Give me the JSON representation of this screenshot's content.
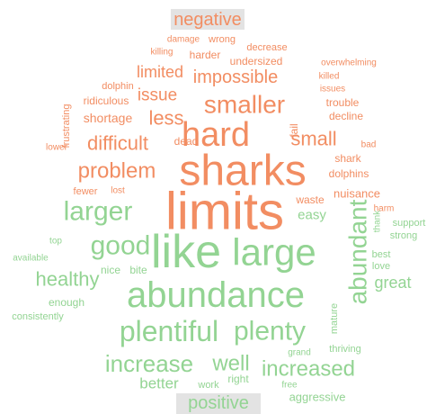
{
  "groups": [
    {
      "label": "negative",
      "words": [
        "damage",
        "wrong",
        "killing",
        "harder",
        "decrease",
        "undersized",
        "overwhelming",
        "killed",
        "issues",
        "trouble",
        "decline",
        "limited",
        "impossible",
        "dolphin",
        "ridiculous",
        "issue",
        "smaller",
        "frustrating",
        "shortage",
        "less",
        "hard",
        "fail",
        "small",
        "bad",
        "lower",
        "difficult",
        "dead",
        "shark",
        "dolphins",
        "problem",
        "sharks",
        "fewer",
        "lost",
        "limits",
        "nuisance",
        "waste",
        "harm"
      ]
    },
    {
      "label": "positive",
      "words": [
        "easy",
        "thank",
        "support",
        "strong",
        "larger",
        "like",
        "large",
        "abundant",
        "good",
        "top",
        "available",
        "best",
        "love",
        "great",
        "healthy",
        "nice",
        "bite",
        "enough",
        "consistently",
        "abundance",
        "plentiful",
        "plenty",
        "mature",
        "grand",
        "thriving",
        "increase",
        "well",
        "increased",
        "right",
        "work",
        "free",
        "better",
        "aggressive"
      ]
    }
  ]
}
